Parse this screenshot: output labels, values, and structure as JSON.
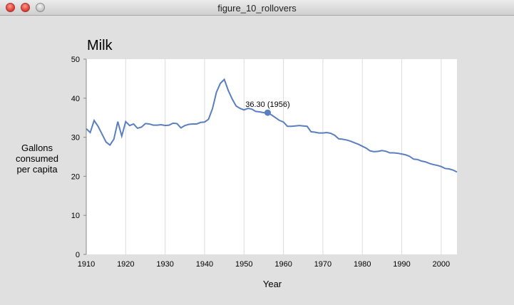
{
  "window": {
    "title": "figure_10_rollovers"
  },
  "chart_data": {
    "type": "line",
    "title": "Milk",
    "ylabel_lines": [
      "Gallons",
      "consumed",
      "per capita"
    ],
    "xlabel": "Year",
    "xlim": [
      1910,
      2004
    ],
    "ylim": [
      0,
      50
    ],
    "x_ticks": [
      1910,
      1920,
      1930,
      1940,
      1950,
      1960,
      1970,
      1980,
      1990,
      2000
    ],
    "x_tick_labels": [
      "1910",
      "1920",
      "1930",
      "1940",
      "1950",
      "1960",
      "1970",
      "1980",
      "1990",
      "2000"
    ],
    "y_ticks": [
      0,
      10,
      20,
      30,
      40,
      50
    ],
    "y_tick_labels": [
      "0",
      "10",
      "20",
      "30",
      "40",
      "50"
    ],
    "grid": "vertical",
    "line_color": "#5a7fc0",
    "x": [
      1910,
      1911,
      1912,
      1913,
      1914,
      1915,
      1916,
      1917,
      1918,
      1919,
      1920,
      1921,
      1922,
      1923,
      1924,
      1925,
      1926,
      1927,
      1928,
      1929,
      1930,
      1931,
      1932,
      1933,
      1934,
      1935,
      1936,
      1937,
      1938,
      1939,
      1940,
      1941,
      1942,
      1943,
      1944,
      1945,
      1946,
      1947,
      1948,
      1949,
      1950,
      1951,
      1952,
      1953,
      1954,
      1955,
      1956,
      1957,
      1958,
      1959,
      1960,
      1961,
      1962,
      1963,
      1964,
      1965,
      1966,
      1967,
      1968,
      1969,
      1970,
      1971,
      1972,
      1973,
      1974,
      1975,
      1976,
      1977,
      1978,
      1979,
      1980,
      1981,
      1982,
      1983,
      1984,
      1985,
      1986,
      1987,
      1988,
      1989,
      1990,
      1991,
      1992,
      1993,
      1994,
      1995,
      1996,
      1997,
      1998,
      1999,
      2000,
      2001,
      2002,
      2003,
      2004
    ],
    "values": [
      32.2,
      31.2,
      34.3,
      32.8,
      30.8,
      28.8,
      28.0,
      29.5,
      34.0,
      30.3,
      34.0,
      33.0,
      33.4,
      32.3,
      32.6,
      33.5,
      33.4,
      33.1,
      33.1,
      33.2,
      33.0,
      33.1,
      33.6,
      33.5,
      32.4,
      33.0,
      33.3,
      33.4,
      33.4,
      33.8,
      33.9,
      34.6,
      37.3,
      41.5,
      43.8,
      44.8,
      42.0,
      39.8,
      38.0,
      37.4,
      37.0,
      37.4,
      37.2,
      36.6,
      36.5,
      36.3,
      36.3,
      35.7,
      35.0,
      34.3,
      33.9,
      32.8,
      32.8,
      32.9,
      33.0,
      32.9,
      32.8,
      31.4,
      31.3,
      31.1,
      31.1,
      31.2,
      31.0,
      30.5,
      29.6,
      29.5,
      29.3,
      29.0,
      28.6,
      28.2,
      27.7,
      27.2,
      26.5,
      26.3,
      26.4,
      26.6,
      26.4,
      26.0,
      26.0,
      25.9,
      25.7,
      25.5,
      25.1,
      24.4,
      24.3,
      23.9,
      23.7,
      23.3,
      23.0,
      22.8,
      22.5,
      22.0,
      21.9,
      21.6,
      21.1
    ],
    "annotation": {
      "label": "36.30 (1956)",
      "x": 1956,
      "y": 36.3
    }
  }
}
